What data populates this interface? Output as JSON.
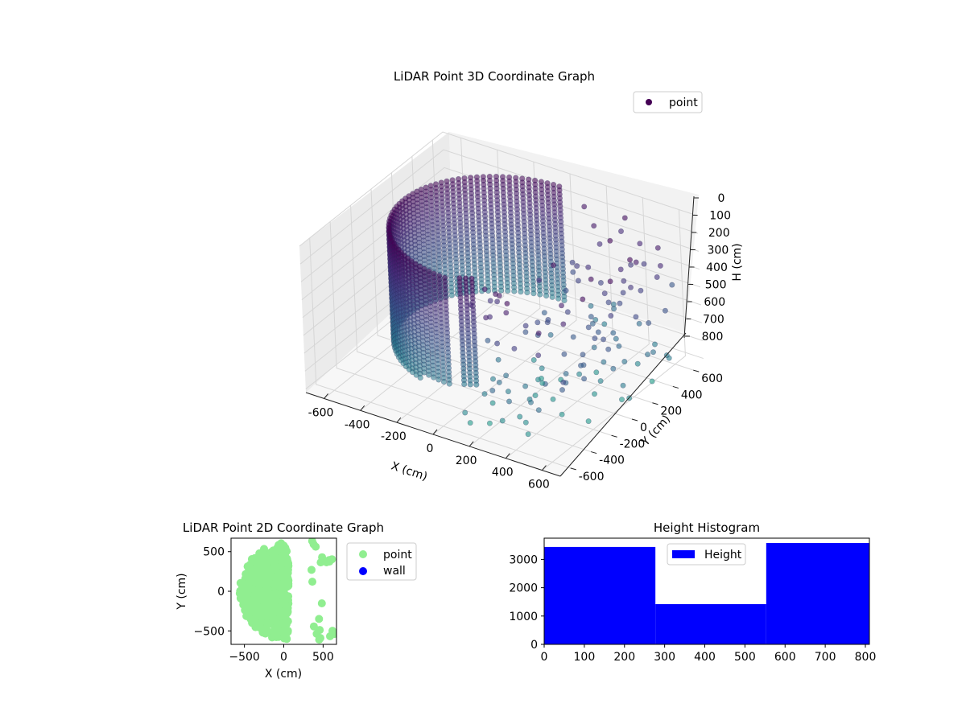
{
  "chart_data": [
    {
      "type": "scatter3d",
      "title": "LiDAR Point 3D Coordinate Graph",
      "xlabel": "X (cm)",
      "ylabel": "Y (cm)",
      "zlabel": "H (cm)",
      "xlim": [
        -700,
        700
      ],
      "ylim": [
        -700,
        700
      ],
      "zlim": [
        0,
        820
      ],
      "z_inverted": true,
      "x_ticks": [
        -600,
        -400,
        -200,
        0,
        200,
        400,
        600
      ],
      "y_ticks": [
        -600,
        -400,
        -200,
        0,
        200,
        400,
        600
      ],
      "z_ticks": [
        0,
        100,
        200,
        300,
        400,
        500,
        600,
        700,
        800
      ],
      "legend": {
        "entries": [
          "point"
        ],
        "placement": "top-right"
      },
      "colormap": "viridis",
      "series": [
        {
          "name": "point",
          "shape": "half-cylinder wall",
          "radius": 560,
          "angle_range_deg": [
            90,
            270
          ],
          "height_range": [
            0,
            660
          ],
          "gap_near_angle_deg": 270
        },
        {
          "name": "point",
          "shape": "scattered outliers",
          "x_range": [
            -100,
            700
          ],
          "y_range": [
            -700,
            700
          ],
          "height_range": [
            0,
            820
          ]
        }
      ]
    },
    {
      "type": "scatter",
      "title": "LiDAR Point 2D Coordinate Graph",
      "xlabel": "X (cm)",
      "ylabel": "Y (cm)",
      "xlim": [
        -670,
        670
      ],
      "ylim": [
        -670,
        670
      ],
      "x_ticks": [
        -500,
        0,
        500
      ],
      "y_ticks": [
        -500,
        0,
        500
      ],
      "legend": {
        "entries": [
          "point",
          "wall"
        ],
        "placement": "outside-right"
      },
      "series": [
        {
          "name": "point",
          "color": "#90ee90",
          "shape": "filled half-disc",
          "x_range": [
            -600,
            300
          ],
          "y_range": [
            -650,
            650
          ]
        },
        {
          "name": "wall",
          "color": "#0000ff",
          "points": []
        }
      ]
    },
    {
      "type": "histogram",
      "title": "Height Histogram",
      "xlim": [
        0,
        810
      ],
      "ylim": [
        0,
        3750
      ],
      "x_ticks": [
        0,
        100,
        200,
        300,
        400,
        500,
        600,
        700,
        800
      ],
      "y_ticks": [
        0,
        1000,
        2000,
        3000
      ],
      "bins": [
        {
          "start": 0,
          "end": 277,
          "count": 3440
        },
        {
          "start": 277,
          "end": 553,
          "count": 1420
        },
        {
          "start": 553,
          "end": 810,
          "count": 3580
        }
      ],
      "legend": {
        "entries": [
          "Height"
        ],
        "placement": "top-center"
      },
      "color": "#0000ff"
    }
  ]
}
